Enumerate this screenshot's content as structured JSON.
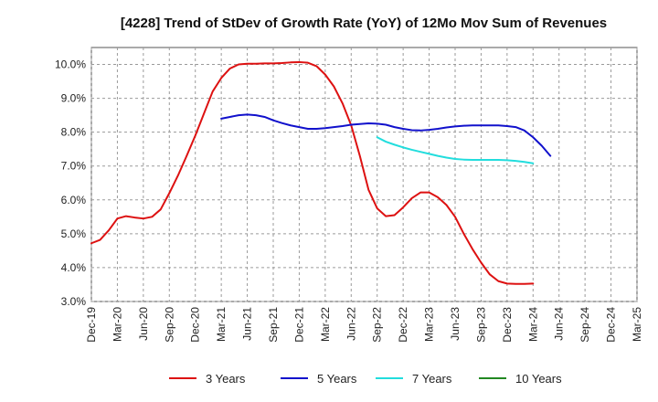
{
  "chart_data": {
    "type": "line",
    "title": "[4228]  Trend of StDev of Growth Rate (YoY) of 12Mo Mov Sum of Revenues",
    "xlabel": "",
    "ylabel": "",
    "ylim": [
      3.0,
      10.5
    ],
    "yticks": [
      3.0,
      4.0,
      5.0,
      6.0,
      7.0,
      8.0,
      9.0,
      10.0
    ],
    "ytick_labels": [
      "3.0%",
      "4.0%",
      "5.0%",
      "6.0%",
      "7.0%",
      "8.0%",
      "9.0%",
      "10.0%"
    ],
    "x_categories": [
      "Dec-19",
      "Mar-20",
      "Jun-20",
      "Sep-20",
      "Dec-20",
      "Mar-21",
      "Jun-21",
      "Sep-21",
      "Dec-21",
      "Mar-22",
      "Jun-22",
      "Sep-22",
      "Dec-22",
      "Mar-23",
      "Jun-23",
      "Sep-23",
      "Dec-23",
      "Mar-24",
      "Jun-24",
      "Sep-24",
      "Dec-24",
      "Mar-25"
    ],
    "grid": true,
    "legend_position": "bottom",
    "series": [
      {
        "name": "3 Years",
        "color": "#dd1111",
        "start_index": 0,
        "values": [
          4.72,
          4.82,
          5.1,
          5.45,
          5.52,
          5.48,
          5.45,
          5.5,
          5.72,
          6.2,
          6.72,
          7.3,
          7.9,
          8.55,
          9.2,
          9.6,
          9.88,
          10.0,
          10.02,
          10.02,
          10.03,
          10.03,
          10.04,
          10.06,
          10.07,
          10.05,
          9.95,
          9.7,
          9.35,
          8.85,
          8.2,
          7.3,
          6.3,
          5.75,
          5.52,
          5.55,
          5.78,
          6.05,
          6.22,
          6.22,
          6.08,
          5.85,
          5.5,
          5.0,
          4.55,
          4.15,
          3.8,
          3.6,
          3.53,
          3.52,
          3.52,
          3.53
        ]
      },
      {
        "name": "5 Years",
        "color": "#1111cc",
        "start_index": 15,
        "values": [
          8.4,
          8.45,
          8.5,
          8.52,
          8.5,
          8.45,
          8.35,
          8.27,
          8.2,
          8.15,
          8.1,
          8.1,
          8.12,
          8.15,
          8.18,
          8.22,
          8.24,
          8.26,
          8.25,
          8.22,
          8.15,
          8.1,
          8.06,
          8.05,
          8.07,
          8.1,
          8.14,
          8.17,
          8.19,
          8.2,
          8.2,
          8.2,
          8.2,
          8.18,
          8.15,
          8.05,
          7.85,
          7.6,
          7.3
        ]
      },
      {
        "name": "7 Years",
        "color": "#22dddd",
        "start_index": 33,
        "values": [
          7.85,
          7.72,
          7.63,
          7.55,
          7.48,
          7.42,
          7.36,
          7.3,
          7.25,
          7.21,
          7.19,
          7.18,
          7.18,
          7.18,
          7.18,
          7.17,
          7.15,
          7.12,
          7.08
        ]
      },
      {
        "name": "10 Years",
        "color": "#228822",
        "start_index": 0,
        "values": []
      }
    ]
  }
}
